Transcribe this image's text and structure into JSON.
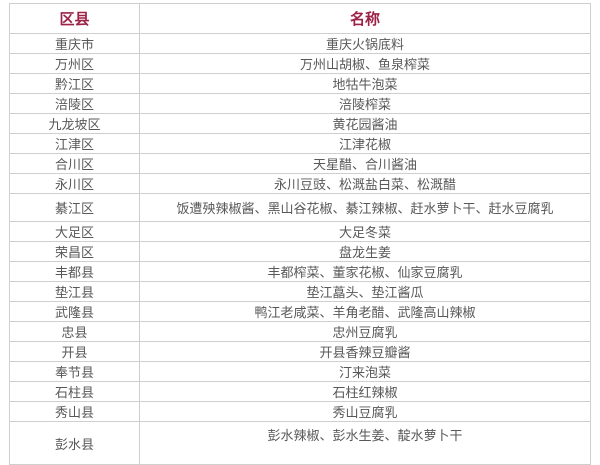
{
  "table": {
    "headers": {
      "district": "区县",
      "name": "名称"
    },
    "rows": [
      {
        "district": "重庆市",
        "products": "重庆火锅底料"
      },
      {
        "district": "万州区",
        "products": "万州山胡椒、鱼泉榨菜"
      },
      {
        "district": "黔江区",
        "products": "地牯牛泡菜"
      },
      {
        "district": "涪陵区",
        "products": "涪陵榨菜"
      },
      {
        "district": "九龙坡区",
        "products": "黄花园酱油"
      },
      {
        "district": "江津区",
        "products": "江津花椒"
      },
      {
        "district": "合川区",
        "products": "天星醋、合川酱油"
      },
      {
        "district": "永川区",
        "products": "永川豆豉、松溉盐白菜、松溉醋"
      },
      {
        "district": "綦江区",
        "products": "饭遭殃辣椒酱、黑山谷花椒、綦江辣椒、赶水萝卜干、赶水豆腐乳"
      },
      {
        "district": "大足区",
        "products": "大足冬菜"
      },
      {
        "district": "荣昌区",
        "products": "盘龙生姜"
      },
      {
        "district": "丰都县",
        "products": "丰都榨菜、董家花椒、仙家豆腐乳"
      },
      {
        "district": "垫江县",
        "products": "垫江藠头、垫江酱瓜"
      },
      {
        "district": "武隆县",
        "products": "鸭江老咸菜、羊角老醋、武隆高山辣椒"
      },
      {
        "district": "忠县",
        "products": "忠州豆腐乳"
      },
      {
        "district": "开县",
        "products": "开县香辣豆瓣酱"
      },
      {
        "district": "奉节县",
        "products": "汀来泡菜"
      },
      {
        "district": "石柱县",
        "products": "石柱红辣椒"
      },
      {
        "district": "秀山县",
        "products": "秀山豆腐乳"
      },
      {
        "district": "彭水县",
        "products": "彭水辣椒、彭水生姜、靛水萝卜干"
      }
    ]
  },
  "colors": {
    "header_text": "#9d2248",
    "body_text": "#585858",
    "border": "#cfcfcf",
    "background": "#ffffff"
  }
}
